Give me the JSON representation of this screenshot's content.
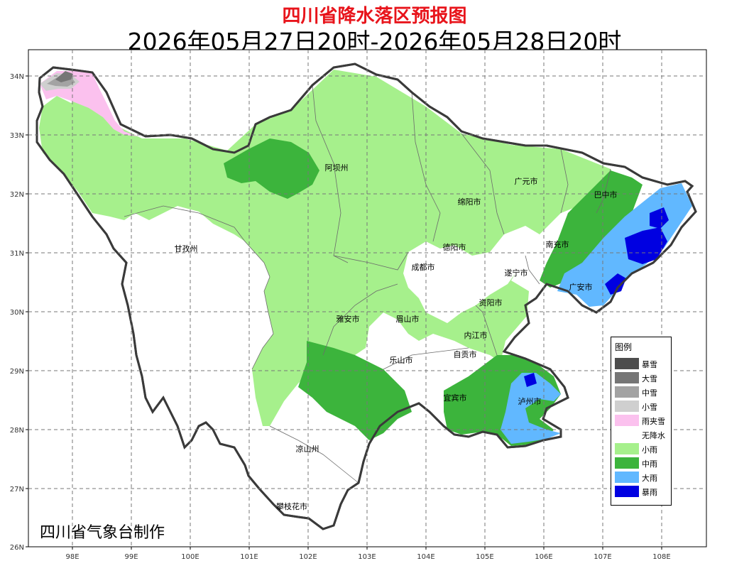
{
  "title": "四川省降水落区预报图",
  "subtitle": "2026年05月27日20时-2026年05月28日20时",
  "credit": "四川省气象台制作",
  "y_ticks": [
    "34N",
    "33N",
    "32N",
    "31N",
    "30N",
    "29N",
    "28N",
    "27N",
    "26N"
  ],
  "x_ticks": [
    "98E",
    "99E",
    "100E",
    "101E",
    "102E",
    "103E",
    "104E",
    "105E",
    "106E",
    "107E",
    "108E"
  ],
  "cities": [
    "阿坝州",
    "广元市",
    "巴中市",
    "绵阳市",
    "甘孜州",
    "德阳市",
    "南充市",
    "成都市",
    "遂宁市",
    "广安市",
    "资阳市",
    "雅安市",
    "眉山市",
    "内江市",
    "乐山市",
    "自贡市",
    "宜宾市",
    "泸州市",
    "凉山州",
    "攀枝花市"
  ],
  "legend": {
    "title": "图例",
    "items": [
      {
        "label": "暴雪",
        "color": "#4d4d4d"
      },
      {
        "label": "大雪",
        "color": "#767676"
      },
      {
        "label": "中雪",
        "color": "#a3a3a3"
      },
      {
        "label": "小雪",
        "color": "#cfcfcf"
      },
      {
        "label": "雨夹雪",
        "color": "#fbc1ee"
      },
      {
        "label": "无降水",
        "color": "#ffffff"
      },
      {
        "label": "小雨",
        "color": "#a6f08c"
      },
      {
        "label": "中雨",
        "color": "#3cb43c"
      },
      {
        "label": "大雨",
        "color": "#61b8ff"
      },
      {
        "label": "暴雨",
        "color": "#0000e1"
      }
    ]
  }
}
